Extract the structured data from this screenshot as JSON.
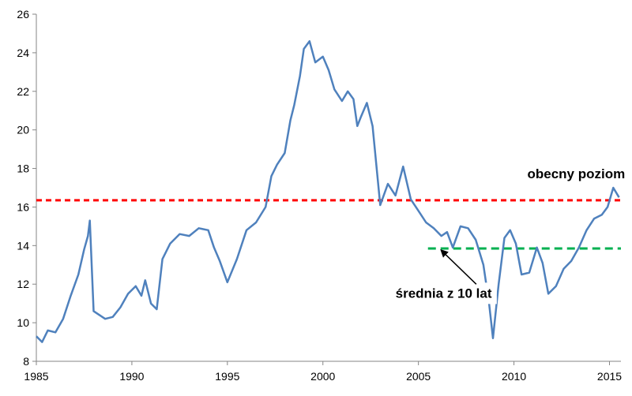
{
  "chart_data": {
    "type": "line",
    "title": "",
    "xlabel": "",
    "ylabel": "",
    "xlim": [
      1985,
      2015.6
    ],
    "ylim": [
      8,
      26
    ],
    "x_ticks": [
      "1985",
      "1990",
      "1995",
      "2000",
      "2005",
      "2010",
      "2015"
    ],
    "y_ticks": [
      "8",
      "10",
      "12",
      "14",
      "16",
      "18",
      "20",
      "22",
      "24",
      "26"
    ],
    "grid": false,
    "legend": "none",
    "colors": {
      "series": "#4f81bd",
      "current_level": "#ff0000",
      "avg_10y": "#00b050"
    },
    "series": [
      {
        "x": [
          1985.0,
          1985.3,
          1985.6,
          1986.0,
          1986.4,
          1986.8,
          1987.2,
          1987.5,
          1987.7,
          1987.8,
          1988.0,
          1988.3,
          1988.6,
          1989.0,
          1989.4,
          1989.8,
          1990.2,
          1990.5,
          1990.7,
          1991.0,
          1991.3,
          1991.6,
          1992.0,
          1992.5,
          1993.0,
          1993.5,
          1994.0,
          1994.3,
          1994.6,
          1995.0,
          1995.5,
          1996.0,
          1996.5,
          1997.0,
          1997.3,
          1997.6,
          1998.0,
          1998.3,
          1998.5,
          1998.8,
          1999.0,
          1999.3,
          1999.6,
          2000.0,
          2000.3,
          2000.6,
          2001.0,
          2001.3,
          2001.6,
          2001.8,
          2002.0,
          2002.3,
          2002.6,
          2003.0,
          2003.4,
          2003.8,
          2004.2,
          2004.6,
          2005.0,
          2005.4,
          2005.8,
          2006.2,
          2006.5,
          2006.8,
          2007.2,
          2007.6,
          2008.0,
          2008.4,
          2008.7,
          2008.9,
          2009.2,
          2009.5,
          2009.8,
          2010.1,
          2010.4,
          2010.8,
          2011.2,
          2011.5,
          2011.8,
          2012.2,
          2012.6,
          2013.0,
          2013.4,
          2013.8,
          2014.2,
          2014.6,
          2014.9,
          2015.2,
          2015.5
        ],
        "values": [
          9.3,
          9.0,
          9.6,
          9.5,
          10.2,
          11.4,
          12.5,
          13.8,
          14.5,
          15.3,
          10.6,
          10.4,
          10.2,
          10.3,
          10.8,
          11.5,
          11.9,
          11.4,
          12.2,
          11.0,
          10.7,
          13.3,
          14.1,
          14.6,
          14.5,
          14.9,
          14.8,
          13.9,
          13.2,
          12.1,
          13.3,
          14.8,
          15.2,
          16.0,
          17.6,
          18.2,
          18.8,
          20.5,
          21.3,
          22.8,
          24.2,
          24.6,
          23.5,
          23.8,
          23.1,
          22.1,
          21.5,
          22.0,
          21.6,
          20.2,
          20.7,
          21.4,
          20.2,
          16.1,
          17.2,
          16.6,
          18.1,
          16.4,
          15.8,
          15.2,
          14.9,
          14.5,
          14.7,
          13.9,
          15.0,
          14.9,
          14.3,
          13.0,
          11.0,
          9.2,
          12.0,
          14.4,
          14.8,
          14.1,
          12.5,
          12.6,
          13.9,
          13.1,
          11.5,
          11.9,
          12.8,
          13.2,
          13.9,
          14.8,
          15.4,
          15.6,
          16.0,
          17.0,
          16.5
        ]
      }
    ],
    "reference_lines": [
      {
        "name": "obecny poziom",
        "y": 16.35,
        "x_from": 1985,
        "x_to": 2015.6
      },
      {
        "name": "średnia z 10 lat",
        "y": 13.85,
        "x_from": 2005.5,
        "x_to": 2015.6
      }
    ],
    "annotations": [
      {
        "text": "obecny poziom",
        "x": 2010.7,
        "y": 17.5
      },
      {
        "text": "średnia z 10 lat",
        "x": 2003.8,
        "y": 11.3,
        "arrow_to": {
          "x": 2006.2,
          "y": 13.75
        }
      }
    ]
  }
}
